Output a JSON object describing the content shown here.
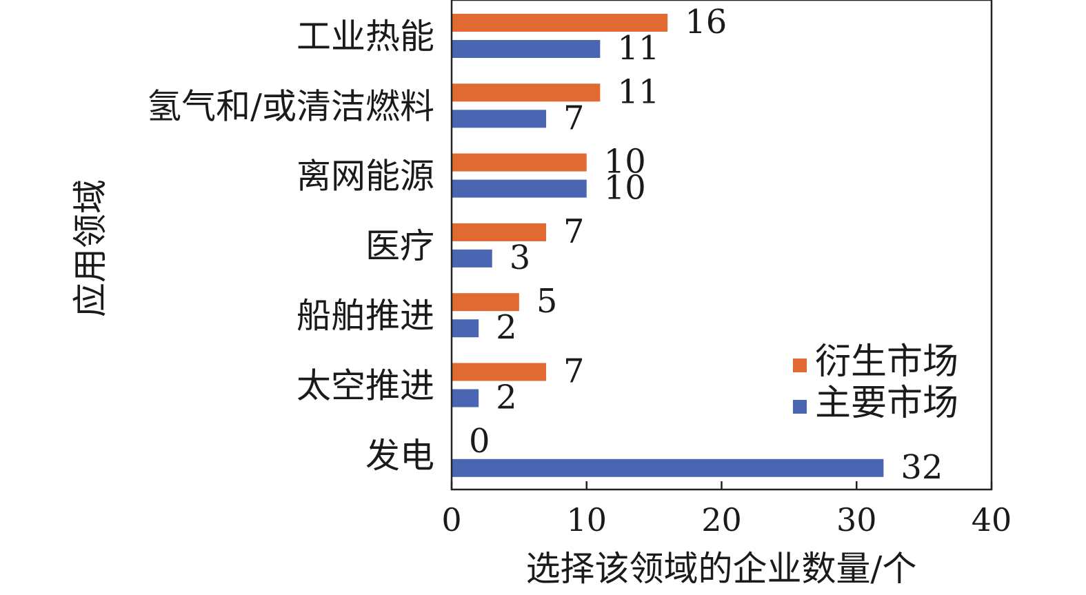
{
  "chart_data": {
    "type": "bar",
    "orientation": "horizontal",
    "categories": [
      "工业热能",
      "氢气和/或清洁燃料",
      "离网能源",
      "医疗",
      "船舶推进",
      "太空推进",
      "发电"
    ],
    "series": [
      {
        "name": "衍生市场",
        "color": "#E06A32",
        "values": [
          16,
          11,
          10,
          7,
          5,
          7,
          0
        ]
      },
      {
        "name": "主要市场",
        "color": "#4A66B3",
        "values": [
          11,
          7,
          10,
          3,
          2,
          2,
          32
        ]
      }
    ],
    "xlabel": "选择该领域的企业数量/个",
    "ylabel": "应用领域",
    "xlim": [
      0,
      40
    ],
    "xticks": [
      0,
      10,
      20,
      30,
      40
    ],
    "legend_position": "lower-right",
    "grid": false
  }
}
